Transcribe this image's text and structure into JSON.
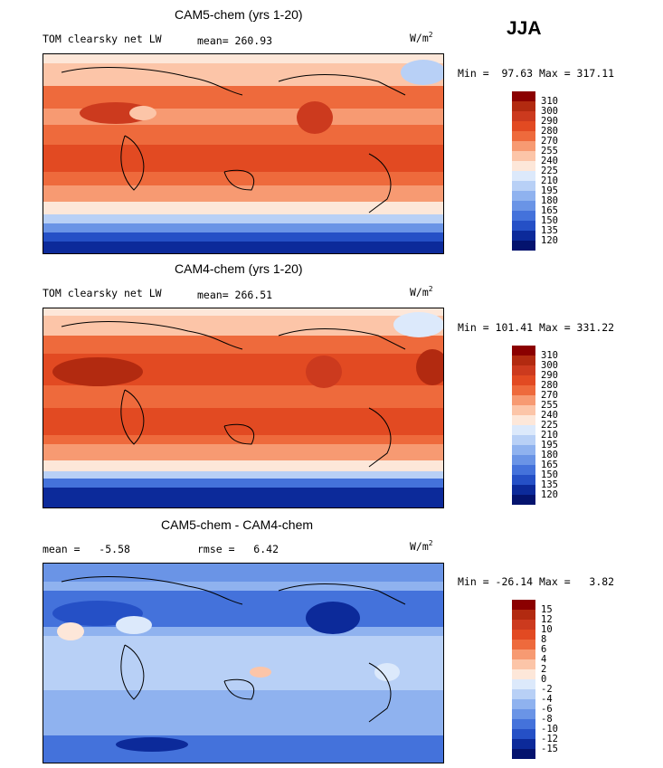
{
  "season": "JJA",
  "panels": [
    {
      "title": "CAM5-chem (yrs 1-20)",
      "left_label": "TOM clearsky net LW",
      "mean_label": "mean= 260.93",
      "units_main": "W/m",
      "units_exp": "2",
      "minmax": "Min =  97.63 Max = 317.11",
      "colorbar_labels": [
        "310",
        "300",
        "290",
        "280",
        "270",
        "255",
        "240",
        "225",
        "210",
        "195",
        "180",
        "165",
        "150",
        "135",
        "120"
      ]
    },
    {
      "title": "CAM4-chem (yrs 1-20)",
      "left_label": "TOM clearsky net LW",
      "mean_label": "mean= 266.51",
      "units_main": "W/m",
      "units_exp": "2",
      "minmax": "Min = 101.41 Max = 331.22",
      "colorbar_labels": [
        "310",
        "300",
        "290",
        "280",
        "270",
        "255",
        "240",
        "225",
        "210",
        "195",
        "180",
        "165",
        "150",
        "135",
        "120"
      ]
    },
    {
      "title": "CAM5-chem - CAM4-chem",
      "left_label": "mean =   -5.58",
      "mean_label": "rmse =   6.42",
      "units_main": "W/m",
      "units_exp": "2",
      "minmax": "Min = -26.14 Max =   3.82",
      "colorbar_labels": [
        "15",
        "12",
        "10",
        "8",
        "6",
        "4",
        "2",
        "0",
        "-2",
        "-4",
        "-6",
        "-8",
        "-10",
        "-12",
        "-15"
      ]
    }
  ],
  "colors": {
    "abs_scale": [
      "#8b0000",
      "#b22a10",
      "#cc3a1e",
      "#e24a22",
      "#ee6a3c",
      "#f79a72",
      "#fcc5a8",
      "#fde7d9",
      "#dce9fb",
      "#b8d0f6",
      "#8fb2ef",
      "#6a94e6",
      "#4472db",
      "#2550c6",
      "#0c2a9a",
      "#04136e"
    ],
    "diff_scale": [
      "#8b0000",
      "#b22a10",
      "#cc3a1e",
      "#e24a22",
      "#ee6a3c",
      "#f79a72",
      "#fcc5a8",
      "#fde7d9",
      "#dce9fb",
      "#b8d0f6",
      "#8fb2ef",
      "#6a94e6",
      "#4472db",
      "#2550c6",
      "#0c2a9a",
      "#04136e"
    ]
  },
  "chart_data": [
    {
      "type": "heatmap",
      "title": "CAM5-chem (yrs 1-20)",
      "variable": "TOM clearsky net LW",
      "units": "W/m2",
      "mean": 260.93,
      "min": 97.63,
      "max": 317.11,
      "levels": [
        120,
        135,
        150,
        165,
        180,
        195,
        210,
        225,
        240,
        255,
        270,
        280,
        290,
        300,
        310
      ]
    },
    {
      "type": "heatmap",
      "title": "CAM4-chem (yrs 1-20)",
      "variable": "TOM clearsky net LW",
      "units": "W/m2",
      "mean": 266.51,
      "min": 101.41,
      "max": 331.22,
      "levels": [
        120,
        135,
        150,
        165,
        180,
        195,
        210,
        225,
        240,
        255,
        270,
        280,
        290,
        300,
        310
      ]
    },
    {
      "type": "heatmap",
      "title": "CAM5-chem - CAM4-chem",
      "units": "W/m2",
      "mean": -5.58,
      "rmse": 6.42,
      "min": -26.14,
      "max": 3.82,
      "levels": [
        -15,
        -12,
        -10,
        -8,
        -6,
        -4,
        -2,
        0,
        2,
        4,
        6,
        8,
        10,
        12,
        15
      ]
    }
  ]
}
